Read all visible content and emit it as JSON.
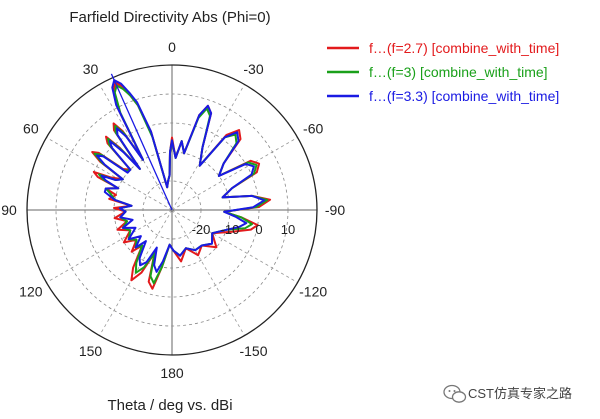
{
  "chart_data": {
    "type": "line",
    "subtype": "polar",
    "title": "Farfield Directivity Abs (Phi=0)",
    "xlabel": "Theta / deg vs. dBi",
    "angle_ticks": [
      {
        "deg": 0,
        "label": "0"
      },
      {
        "deg": 30,
        "label": "30"
      },
      {
        "deg": 60,
        "label": "60"
      },
      {
        "deg": 90,
        "label": "90"
      },
      {
        "deg": 120,
        "label": "120"
      },
      {
        "deg": 150,
        "label": "150"
      },
      {
        "deg": 180,
        "label": "180"
      },
      {
        "deg": 210,
        "label": "-150"
      },
      {
        "deg": 240,
        "label": "-120"
      },
      {
        "deg": 270,
        "label": "-90"
      },
      {
        "deg": 300,
        "label": "-60"
      },
      {
        "deg": 330,
        "label": "-30"
      }
    ],
    "radial_ticks": [
      {
        "value": -20,
        "label": "-20"
      },
      {
        "value": -10,
        "label": "-10"
      },
      {
        "value": 0,
        "label": "0"
      },
      {
        "value": 10,
        "label": "10"
      }
    ],
    "rlim": [
      -30,
      20
    ],
    "legend_position": "top-right",
    "series": [
      {
        "name": "f…(f=2.7) [combine_with_time]",
        "color": "#e31a1c",
        "points": [
          [
            0,
            -5
          ],
          [
            2,
            -10
          ],
          [
            4,
            -18
          ],
          [
            8,
            -20
          ],
          [
            12,
            -22
          ],
          [
            15,
            -2
          ],
          [
            18,
            8
          ],
          [
            20,
            12
          ],
          [
            22,
            16
          ],
          [
            24,
            18
          ],
          [
            26,
            16
          ],
          [
            28,
            10
          ],
          [
            30,
            -10
          ],
          [
            32,
            2
          ],
          [
            34,
            6
          ],
          [
            36,
            4
          ],
          [
            38,
            -12
          ],
          [
            40,
            -2
          ],
          [
            42,
            4
          ],
          [
            44,
            2
          ],
          [
            46,
            -10
          ],
          [
            50,
            -8
          ],
          [
            52,
            2
          ],
          [
            54,
            4
          ],
          [
            56,
            0
          ],
          [
            58,
            -10
          ],
          [
            62,
            -6
          ],
          [
            64,
            0
          ],
          [
            66,
            -2
          ],
          [
            68,
            -10
          ],
          [
            72,
            -6
          ],
          [
            75,
            -10
          ],
          [
            80,
            -8
          ],
          [
            84,
            -16
          ],
          [
            88,
            -10
          ],
          [
            92,
            -14
          ],
          [
            98,
            -10
          ],
          [
            104,
            -14
          ],
          [
            110,
            -10
          ],
          [
            116,
            -14
          ],
          [
            124,
            -10
          ],
          [
            130,
            -14
          ],
          [
            136,
            -10
          ],
          [
            140,
            -14
          ],
          [
            146,
            -6
          ],
          [
            150,
            -2
          ],
          [
            154,
            -6
          ],
          [
            158,
            -14
          ],
          [
            162,
            -4
          ],
          [
            166,
            -2
          ],
          [
            170,
            -10
          ],
          [
            176,
            -18
          ],
          [
            182,
            -16
          ],
          [
            190,
            -12
          ],
          [
            200,
            -16
          ],
          [
            210,
            -12
          ],
          [
            220,
            -14
          ],
          [
            230,
            -10
          ],
          [
            240,
            -14
          ],
          [
            250,
            -8
          ],
          [
            256,
            -2
          ],
          [
            260,
            0
          ],
          [
            264,
            -6
          ],
          [
            268,
            -12
          ],
          [
            272,
            0
          ],
          [
            276,
            4
          ],
          [
            280,
            -2
          ],
          [
            284,
            -12
          ],
          [
            290,
            -8
          ],
          [
            294,
            2
          ],
          [
            298,
            4
          ],
          [
            302,
            2
          ],
          [
            306,
            -10
          ],
          [
            312,
            -6
          ],
          [
            316,
            4
          ],
          [
            320,
            6
          ],
          [
            324,
            2
          ],
          [
            328,
            -12
          ],
          [
            334,
            -6
          ],
          [
            338,
            6
          ],
          [
            341,
            8
          ],
          [
            344,
            4
          ],
          [
            348,
            -10
          ],
          [
            352,
            -6
          ],
          [
            356,
            -12
          ],
          [
            360,
            -5
          ]
        ]
      },
      {
        "name": "f…(f=3) [combine_with_time]",
        "color": "#1aa01a",
        "points": [
          [
            0,
            -6
          ],
          [
            2,
            -10
          ],
          [
            4,
            -18
          ],
          [
            8,
            -20
          ],
          [
            12,
            -22
          ],
          [
            15,
            -4
          ],
          [
            18,
            8
          ],
          [
            20,
            12
          ],
          [
            22,
            15
          ],
          [
            24,
            17
          ],
          [
            26,
            15
          ],
          [
            28,
            8
          ],
          [
            30,
            -10
          ],
          [
            32,
            1
          ],
          [
            34,
            5
          ],
          [
            36,
            3
          ],
          [
            38,
            -12
          ],
          [
            40,
            -3
          ],
          [
            42,
            3
          ],
          [
            44,
            1
          ],
          [
            46,
            -10
          ],
          [
            50,
            -9
          ],
          [
            52,
            1
          ],
          [
            54,
            3
          ],
          [
            56,
            -1
          ],
          [
            58,
            -10
          ],
          [
            62,
            -8
          ],
          [
            64,
            -2
          ],
          [
            66,
            -4
          ],
          [
            68,
            -10
          ],
          [
            72,
            -6
          ],
          [
            75,
            -8
          ],
          [
            80,
            -10
          ],
          [
            84,
            -16
          ],
          [
            88,
            -12
          ],
          [
            92,
            -14
          ],
          [
            98,
            -12
          ],
          [
            104,
            -14
          ],
          [
            110,
            -12
          ],
          [
            116,
            -14
          ],
          [
            124,
            -12
          ],
          [
            130,
            -14
          ],
          [
            136,
            -12
          ],
          [
            140,
            -14
          ],
          [
            146,
            -8
          ],
          [
            150,
            -5
          ],
          [
            154,
            -8
          ],
          [
            158,
            -14
          ],
          [
            162,
            -6
          ],
          [
            166,
            -4
          ],
          [
            170,
            -10
          ],
          [
            176,
            -18
          ],
          [
            182,
            -16
          ],
          [
            190,
            -14
          ],
          [
            200,
            -16
          ],
          [
            210,
            -14
          ],
          [
            220,
            -14
          ],
          [
            230,
            -12
          ],
          [
            240,
            -14
          ],
          [
            250,
            -10
          ],
          [
            256,
            -4
          ],
          [
            260,
            -2
          ],
          [
            264,
            -6
          ],
          [
            268,
            -12
          ],
          [
            272,
            -1
          ],
          [
            276,
            3
          ],
          [
            280,
            -2
          ],
          [
            284,
            -12
          ],
          [
            290,
            -8
          ],
          [
            294,
            1
          ],
          [
            298,
            3
          ],
          [
            302,
            1
          ],
          [
            306,
            -10
          ],
          [
            312,
            -6
          ],
          [
            316,
            2
          ],
          [
            320,
            4
          ],
          [
            324,
            1
          ],
          [
            328,
            -12
          ],
          [
            334,
            -6
          ],
          [
            338,
            5
          ],
          [
            341,
            7
          ],
          [
            344,
            3
          ],
          [
            348,
            -10
          ],
          [
            352,
            -6
          ],
          [
            356,
            -12
          ],
          [
            360,
            -6
          ]
        ]
      },
      {
        "name": "f…(f=3.3) [combine_with_time]",
        "color": "#1a1ae3",
        "points": [
          [
            0,
            -6
          ],
          [
            2,
            -10
          ],
          [
            4,
            -18
          ],
          [
            8,
            -20
          ],
          [
            12,
            -22
          ],
          [
            15,
            -2
          ],
          [
            18,
            9
          ],
          [
            20,
            13
          ],
          [
            22,
            17
          ],
          [
            24,
            19
          ],
          [
            26,
            17
          ],
          [
            28,
            11
          ],
          [
            30,
            -10
          ],
          [
            32,
            0
          ],
          [
            34,
            4
          ],
          [
            36,
            2
          ],
          [
            38,
            -12
          ],
          [
            40,
            -4
          ],
          [
            42,
            2
          ],
          [
            44,
            0
          ],
          [
            46,
            -10
          ],
          [
            50,
            -10
          ],
          [
            52,
            0
          ],
          [
            54,
            2
          ],
          [
            56,
            -2
          ],
          [
            58,
            -10
          ],
          [
            62,
            -8
          ],
          [
            64,
            -3
          ],
          [
            66,
            -5
          ],
          [
            68,
            -10
          ],
          [
            72,
            -6
          ],
          [
            75,
            -6
          ],
          [
            80,
            -10
          ],
          [
            84,
            -16
          ],
          [
            88,
            -12
          ],
          [
            92,
            -14
          ],
          [
            98,
            -12
          ],
          [
            104,
            -16
          ],
          [
            110,
            -12
          ],
          [
            116,
            -16
          ],
          [
            124,
            -12
          ],
          [
            130,
            -16
          ],
          [
            136,
            -12
          ],
          [
            140,
            -16
          ],
          [
            146,
            -10
          ],
          [
            150,
            -8
          ],
          [
            154,
            -10
          ],
          [
            158,
            -16
          ],
          [
            162,
            -10
          ],
          [
            166,
            -8
          ],
          [
            170,
            -12
          ],
          [
            176,
            -18
          ],
          [
            182,
            -16
          ],
          [
            190,
            -14
          ],
          [
            200,
            -16
          ],
          [
            210,
            -14
          ],
          [
            220,
            -14
          ],
          [
            230,
            -12
          ],
          [
            240,
            -14
          ],
          [
            250,
            -10
          ],
          [
            256,
            -6
          ],
          [
            260,
            -4
          ],
          [
            264,
            -8
          ],
          [
            268,
            -12
          ],
          [
            272,
            -2
          ],
          [
            276,
            2
          ],
          [
            280,
            -2
          ],
          [
            284,
            -12
          ],
          [
            290,
            -8
          ],
          [
            294,
            0
          ],
          [
            298,
            2
          ],
          [
            302,
            0
          ],
          [
            306,
            -10
          ],
          [
            312,
            -6
          ],
          [
            316,
            3
          ],
          [
            320,
            5
          ],
          [
            324,
            1
          ],
          [
            328,
            -12
          ],
          [
            334,
            -6
          ],
          [
            338,
            6
          ],
          [
            341,
            8
          ],
          [
            344,
            4
          ],
          [
            348,
            -10
          ],
          [
            352,
            -6
          ],
          [
            356,
            -12
          ],
          [
            360,
            -6
          ]
        ]
      }
    ],
    "main_lobe_marker": {
      "deg": 24,
      "color": "#1a1ae3"
    }
  },
  "watermark": {
    "icon": "wechat-icon",
    "text": "CST仿真专家之路"
  }
}
